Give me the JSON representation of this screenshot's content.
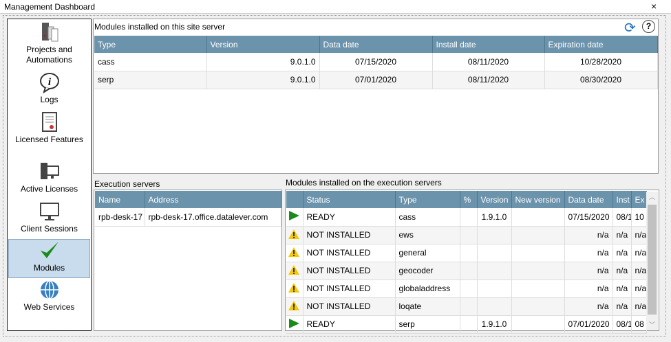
{
  "window": {
    "title": "Management Dashboard",
    "close": "×"
  },
  "sidebar": {
    "items": [
      {
        "label": "Projects and Automations",
        "icon": "server-icon",
        "selected": false
      },
      {
        "label": "Logs",
        "icon": "info-icon",
        "selected": false
      },
      {
        "label": "Licensed Features",
        "icon": "certificate-icon",
        "selected": false
      },
      {
        "label": "Active Licenses",
        "icon": "computer-icon",
        "selected": false
      },
      {
        "label": "Client Sessions",
        "icon": "monitor-icon",
        "selected": false
      },
      {
        "label": "Modules",
        "icon": "checkmark-icon",
        "selected": true
      },
      {
        "label": "Web Services",
        "icon": "globe-icon",
        "selected": false
      }
    ]
  },
  "site": {
    "label": "Modules installed on this site server",
    "columns": [
      "Type",
      "Version",
      "Data date",
      "Install date",
      "Expiration date"
    ],
    "rows": [
      [
        "cass",
        "9.0.1.0",
        "07/15/2020",
        "08/11/2020",
        "10/28/2020"
      ],
      [
        "serp",
        "9.0.1.0",
        "07/01/2020",
        "08/11/2020",
        "08/30/2020"
      ]
    ]
  },
  "exec": {
    "label": "Execution servers",
    "columns": [
      "Name",
      "Address"
    ],
    "rows": [
      [
        "rpb-desk-17",
        "rpb-desk-17.office.datalever.com"
      ]
    ]
  },
  "modules": {
    "label": "Modules installed on the execution servers",
    "columns": [
      "",
      "Status",
      "Type",
      "%",
      "Version",
      "New version",
      "Data date",
      "Inst",
      "Ex"
    ],
    "rows": [
      [
        "play",
        "READY",
        "cass",
        "",
        "1.9.1.0",
        "",
        "07/15/2020",
        "08/1",
        "10"
      ],
      [
        "warn",
        "NOT INSTALLED",
        "ews",
        "",
        "",
        "",
        "n/a",
        "n/a",
        "n/a"
      ],
      [
        "warn",
        "NOT INSTALLED",
        "general",
        "",
        "",
        "",
        "n/a",
        "n/a",
        "n/a"
      ],
      [
        "warn",
        "NOT INSTALLED",
        "geocoder",
        "",
        "",
        "",
        "n/a",
        "n/a",
        "n/a"
      ],
      [
        "warn",
        "NOT INSTALLED",
        "globaladdress",
        "",
        "",
        "",
        "n/a",
        "n/a",
        "n/a"
      ],
      [
        "warn",
        "NOT INSTALLED",
        "loqate",
        "",
        "",
        "",
        "n/a",
        "n/a",
        "n/a"
      ],
      [
        "play",
        "READY",
        "serp",
        "",
        "1.9.1.0",
        "",
        "07/01/2020",
        "08/1",
        "08"
      ]
    ]
  },
  "colors": {
    "header": "#6b93ab",
    "selected": "#c9dced",
    "ready": "#1a8a1a",
    "warning": "#f5c800"
  }
}
